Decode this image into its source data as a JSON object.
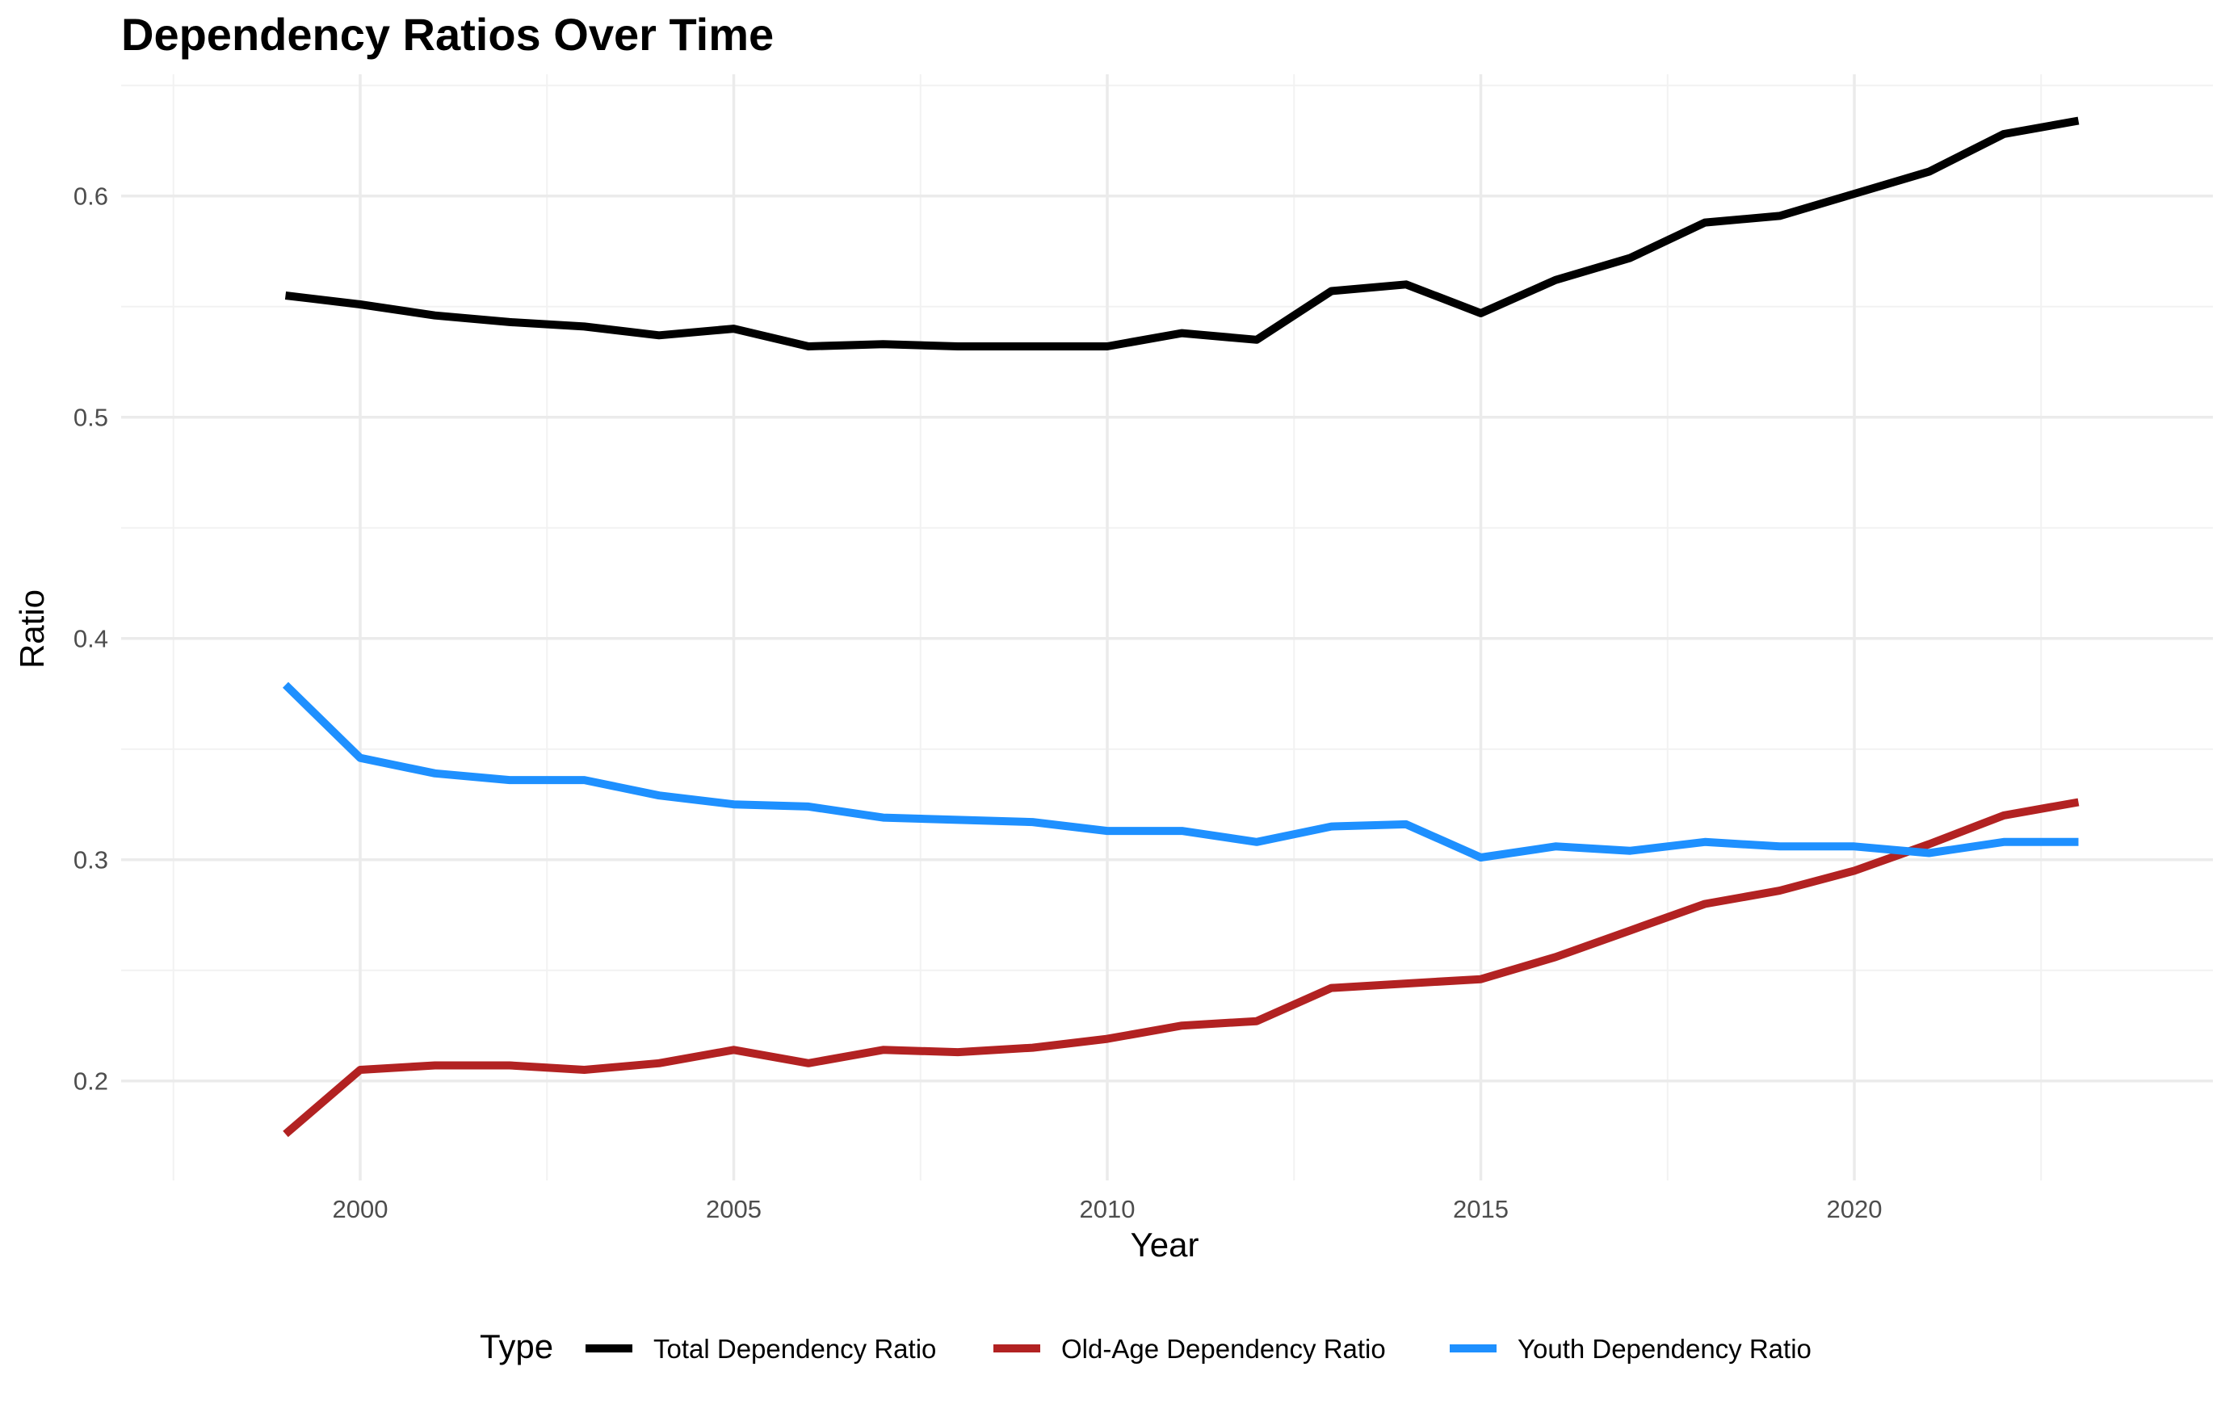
{
  "chart_data": {
    "type": "line",
    "title": "Dependency Ratios Over Time",
    "xlabel": "Year",
    "ylabel": "Ratio",
    "x": [
      1999,
      2000,
      2001,
      2002,
      2003,
      2004,
      2005,
      2006,
      2007,
      2008,
      2009,
      2010,
      2011,
      2012,
      2013,
      2014,
      2015,
      2016,
      2017,
      2018,
      2019,
      2020,
      2021,
      2022,
      2023
    ],
    "xlim": [
      1996.8,
      2024.8
    ],
    "ylim": [
      0.155,
      0.655
    ],
    "xticks": [
      2000,
      2005,
      2010,
      2015,
      2020
    ],
    "xtick_labels": [
      "2000",
      "2005",
      "2010",
      "2015",
      "2020"
    ],
    "yticks": [
      0.2,
      0.3,
      0.4,
      0.5,
      0.6
    ],
    "ytick_labels": [
      "0.2",
      "0.3",
      "0.4",
      "0.5",
      "0.6"
    ],
    "grid": true,
    "legend": {
      "title": "Type",
      "position": "bottom"
    },
    "series": [
      {
        "name": "Total Dependency Ratio",
        "color": "#000000",
        "values": [
          0.555,
          0.551,
          0.546,
          0.543,
          0.541,
          0.537,
          0.54,
          0.532,
          0.533,
          0.532,
          0.532,
          0.532,
          0.538,
          0.535,
          0.557,
          0.56,
          0.547,
          0.562,
          0.572,
          0.588,
          0.591,
          0.601,
          0.611,
          0.628,
          0.634
        ]
      },
      {
        "name": "Old-Age Dependency Ratio",
        "color": "#b22222",
        "values": [
          0.176,
          0.205,
          0.207,
          0.207,
          0.205,
          0.208,
          0.214,
          0.208,
          0.214,
          0.213,
          0.215,
          0.219,
          0.225,
          0.227,
          0.242,
          0.244,
          0.246,
          0.256,
          0.268,
          0.28,
          0.286,
          0.295,
          0.307,
          0.32,
          0.326
        ]
      },
      {
        "name": "Youth Dependency Ratio",
        "color": "#1e90ff",
        "values": [
          0.379,
          0.346,
          0.339,
          0.336,
          0.336,
          0.329,
          0.325,
          0.324,
          0.319,
          0.318,
          0.317,
          0.313,
          0.313,
          0.308,
          0.315,
          0.316,
          0.301,
          0.306,
          0.304,
          0.308,
          0.306,
          0.306,
          0.303,
          0.308,
          0.308
        ]
      }
    ]
  }
}
